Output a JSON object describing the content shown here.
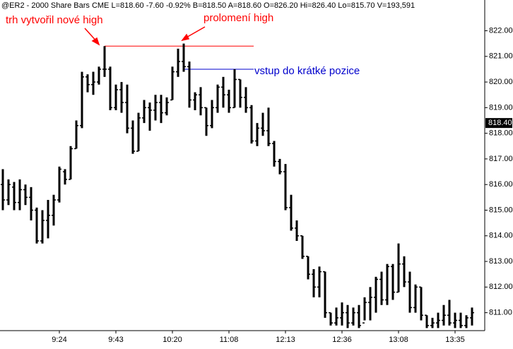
{
  "chart_data": {
    "type": "ohlc",
    "header": "@ER2 - 2000 Share Bars  CME  L=818.60  -7.60  -0.92%  B=818.50  A=818.60  O=826.20  Hi=826.40  Lo=815.70  V=193,591",
    "categories": [
      null,
      null,
      null,
      null,
      null,
      null,
      null,
      null,
      null,
      null,
      "9:24",
      null,
      null,
      null,
      null,
      null,
      null,
      null,
      null,
      null,
      "9:43",
      null,
      null,
      null,
      null,
      null,
      null,
      null,
      null,
      null,
      "10:20",
      null,
      null,
      null,
      null,
      null,
      null,
      null,
      null,
      null,
      "11:08",
      null,
      null,
      null,
      null,
      null,
      null,
      null,
      null,
      null,
      "12:13",
      null,
      null,
      null,
      null,
      null,
      null,
      null,
      null,
      null,
      "12:36",
      null,
      null,
      null,
      null,
      null,
      null,
      null,
      null,
      null,
      "13:08",
      null,
      null,
      null,
      null,
      null,
      null,
      null,
      null,
      null,
      "13:35",
      null,
      null,
      null
    ],
    "open": [
      816.0,
      815.4,
      815.9,
      815.3,
      815.8,
      815.5,
      815.0,
      813.8,
      814.6,
      814.8,
      815.4,
      816.5,
      816.2,
      817.4,
      818.3,
      820.2,
      819.9,
      820.0,
      820.5,
      820.5,
      819.0,
      819.7,
      819.2,
      818.2,
      817.3,
      818.6,
      819.0,
      818.9,
      819.2,
      818.8,
      819.3,
      820.4,
      820.8,
      820.6,
      819.3,
      819.5,
      819.0,
      818.3,
      819.0,
      819.8,
      819.5,
      819.0,
      820.1,
      819.4,
      819.0,
      817.7,
      818.2,
      818.1,
      817.6,
      816.9,
      816.5,
      815.1,
      814.3,
      814.0,
      813.2,
      812.5,
      812.0,
      812.6,
      811.0,
      810.6,
      810.8,
      811.0,
      810.6,
      811.0,
      810.6,
      811.4,
      811.6,
      812.3,
      811.5,
      812.8,
      811.8,
      812.9,
      812.2,
      811.2,
      812.0,
      810.9,
      810.5,
      810.6,
      810.7,
      810.9,
      810.6,
      810.7,
      810.5,
      810.8
    ],
    "high": [
      816.6,
      816.2,
      816.1,
      816.2,
      816.0,
      815.9,
      815.1,
      815.0,
      815.4,
      815.6,
      816.7,
      816.6,
      817.5,
      818.5,
      820.4,
      820.3,
      820.4,
      820.6,
      821.4,
      820.6,
      819.9,
      820.0,
      819.9,
      818.5,
      818.8,
      819.3,
      819.2,
      819.5,
      819.5,
      819.4,
      820.6,
      821.3,
      821.5,
      820.8,
      819.6,
      819.8,
      819.0,
      819.3,
      819.9,
      820.2,
      819.7,
      820.5,
      820.1,
      819.8,
      819.1,
      818.4,
      818.8,
      819.0,
      817.7,
      817.0,
      816.8,
      815.6,
      814.6,
      814.0,
      813.2,
      812.7,
      812.8,
      812.6,
      811.0,
      811.2,
      811.4,
      811.3,
      811.2,
      811.3,
      811.6,
      812.0,
      812.4,
      812.6,
      812.9,
      812.9,
      813.7,
      813.2,
      812.6,
      812.1,
      812.0,
      810.9,
      810.8,
      811.0,
      811.3,
      811.5,
      811.0,
      811.0,
      810.9,
      811.2
    ],
    "low": [
      815.0,
      815.2,
      815.0,
      815.0,
      815.2,
      814.6,
      813.7,
      813.7,
      813.9,
      814.4,
      815.3,
      816.0,
      816.2,
      817.4,
      818.2,
      819.6,
      819.5,
      819.9,
      820.2,
      818.9,
      818.9,
      818.8,
      818.0,
      817.2,
      817.3,
      818.4,
      818.1,
      818.5,
      818.4,
      818.7,
      819.3,
      820.2,
      820.4,
      819.0,
      818.9,
      818.7,
      817.9,
      818.2,
      818.8,
      819.0,
      818.8,
      819.0,
      819.0,
      818.8,
      817.6,
      817.5,
      817.9,
      817.5,
      816.7,
      816.4,
      815.0,
      814.2,
      813.8,
      813.1,
      812.3,
      811.6,
      811.6,
      810.8,
      810.5,
      810.5,
      810.5,
      810.4,
      810.5,
      810.4,
      810.7,
      810.7,
      811.0,
      811.3,
      811.3,
      811.5,
      811.8,
      812.0,
      811.0,
      811.0,
      810.7,
      810.4,
      810.4,
      810.4,
      810.5,
      810.5,
      810.4,
      810.4,
      810.4,
      810.5
    ],
    "close": [
      815.4,
      816.0,
      815.3,
      815.8,
      815.5,
      815.0,
      813.8,
      814.6,
      814.8,
      815.4,
      816.6,
      816.2,
      817.4,
      818.3,
      820.2,
      819.9,
      820.0,
      820.5,
      820.5,
      819.0,
      819.7,
      819.2,
      818.2,
      817.3,
      818.6,
      819.0,
      818.9,
      819.2,
      818.8,
      819.2,
      820.4,
      820.8,
      820.6,
      819.3,
      819.5,
      819.0,
      818.3,
      819.0,
      819.8,
      819.5,
      819.0,
      820.1,
      819.4,
      819.0,
      817.7,
      818.2,
      818.1,
      817.6,
      816.9,
      816.5,
      815.1,
      814.3,
      814.0,
      813.2,
      812.5,
      812.0,
      812.6,
      811.0,
      810.6,
      810.8,
      811.0,
      810.6,
      811.0,
      810.5,
      811.4,
      811.6,
      812.3,
      811.5,
      812.8,
      811.8,
      812.9,
      812.2,
      811.2,
      812.0,
      810.9,
      810.5,
      810.6,
      810.7,
      810.9,
      810.6,
      810.7,
      810.5,
      810.8,
      811.0
    ],
    "color": "#000000",
    "ylim": [
      810.3,
      823.2
    ],
    "yticks": [
      {
        "value": 811,
        "label": "811.00"
      },
      {
        "value": 812,
        "label": "812.00"
      },
      {
        "value": 813,
        "label": "813.00"
      },
      {
        "value": 814,
        "label": "814.00"
      },
      {
        "value": 815,
        "label": "815.00"
      },
      {
        "value": 816,
        "label": "816.00"
      },
      {
        "value": 817,
        "label": "817.00"
      },
      {
        "value": 818,
        "label": "818.00"
      },
      {
        "value": 819,
        "label": "819.00"
      },
      {
        "value": 820,
        "label": "820.00"
      },
      {
        "value": 821,
        "label": "821.00"
      },
      {
        "value": 822,
        "label": "822.00"
      }
    ],
    "last_price": {
      "value": 818.4,
      "label": "818.40"
    },
    "annotation_lines": [
      {
        "value": 821.4,
        "from": 18,
        "to": 44,
        "color": "#ff0000"
      },
      {
        "value": 820.5,
        "from": 32,
        "to": 44,
        "color": "#0000cc"
      }
    ],
    "annotations": [
      {
        "text": "trh vytvořil nové high",
        "color": "#ff0000"
      },
      {
        "text": "prolomení high",
        "color": "#ff0000"
      },
      {
        "text": "vstup do krátké pozice",
        "color": "#0000cc"
      }
    ]
  }
}
